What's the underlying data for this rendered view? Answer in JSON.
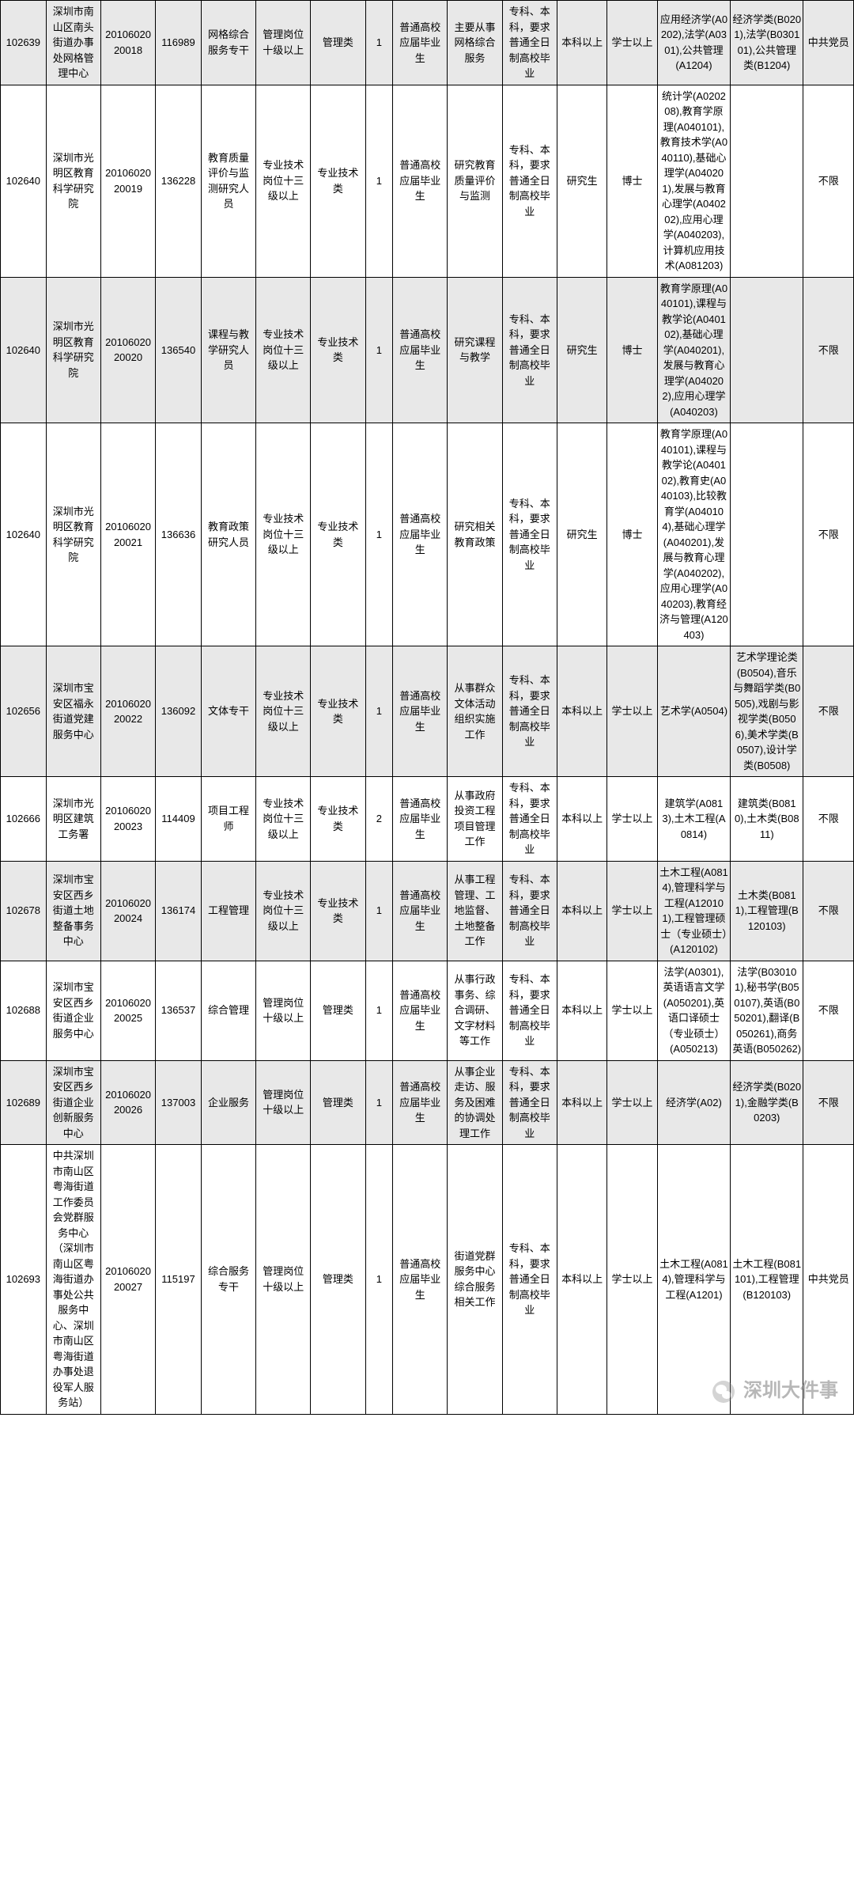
{
  "watermark": "深圳大件事",
  "columns_count": 16,
  "rows": [
    {
      "shaded": true,
      "cells": [
        "102639",
        "深圳市南山区南头街道办事处网格管理中心",
        "20106020 20018",
        "116989",
        "网格综合服务专干",
        "管理岗位十级以上",
        "管理类",
        "1",
        "普通高校应届毕业生",
        "主要从事网格综合服务",
        "专科、本科，要求普通全日制高校毕业",
        "本科以上",
        "学士以上",
        "应用经济学(A0202),法学(A0301),公共管理(A1204)",
        "经济学类(B0201),法学(B030101),公共管理类(B1204)",
        "中共党员"
      ]
    },
    {
      "shaded": false,
      "cells": [
        "102640",
        "深圳市光明区教育科学研究院",
        "20106020 20019",
        "136228",
        "教育质量评价与监测研究人员",
        "专业技术岗位十三级以上",
        "专业技术类",
        "1",
        "普通高校应届毕业生",
        "研究教育质量评价与监测",
        "专科、本科，要求普通全日制高校毕业",
        "研究生",
        "博士",
        "统计学(A020208),教育学原理(A040101),教育技术学(A040110),基础心理学(A040201),发展与教育心理学(A040202),应用心理学(A040203),计算机应用技术(A081203)",
        "",
        "不限"
      ]
    },
    {
      "shaded": true,
      "cells": [
        "102640",
        "深圳市光明区教育科学研究院",
        "20106020 20020",
        "136540",
        "课程与教学研究人员",
        "专业技术岗位十三级以上",
        "专业技术类",
        "1",
        "普通高校应届毕业生",
        "研究课程与教学",
        "专科、本科，要求普通全日制高校毕业",
        "研究生",
        "博士",
        "教育学原理(A040101),课程与教学论(A040102),基础心理学(A040201),发展与教育心理学(A040202),应用心理学(A040203)",
        "",
        "不限"
      ]
    },
    {
      "shaded": false,
      "cells": [
        "102640",
        "深圳市光明区教育科学研究院",
        "20106020 20021",
        "136636",
        "教育政策研究人员",
        "专业技术岗位十三级以上",
        "专业技术类",
        "1",
        "普通高校应届毕业生",
        "研究相关教育政策",
        "专科、本科，要求普通全日制高校毕业",
        "研究生",
        "博士",
        "教育学原理(A040101),课程与教学论(A040102),教育史(A040103),比较教育学(A040104),基础心理学(A040201),发展与教育心理学(A040202),应用心理学(A040203),教育经济与管理(A120403)",
        "",
        "不限"
      ]
    },
    {
      "shaded": true,
      "cells": [
        "102656",
        "深圳市宝安区福永街道党建服务中心",
        "20106020 20022",
        "136092",
        "文体专干",
        "专业技术岗位十三级以上",
        "专业技术类",
        "1",
        "普通高校应届毕业生",
        "从事群众文体活动组织实施工作",
        "专科、本科，要求普通全日制高校毕业",
        "本科以上",
        "学士以上",
        "艺术学(A0504)",
        "艺术学理论类(B0504),音乐与舞蹈学类(B0505),戏剧与影视学类(B0506),美术学类(B0507),设计学类(B0508)",
        "不限"
      ]
    },
    {
      "shaded": false,
      "cells": [
        "102666",
        "深圳市光明区建筑工务署",
        "20106020 20023",
        "114409",
        "项目工程师",
        "专业技术岗位十三级以上",
        "专业技术类",
        "2",
        "普通高校应届毕业生",
        "从事政府投资工程项目管理工作",
        "专科、本科，要求普通全日制高校毕业",
        "本科以上",
        "学士以上",
        "建筑学(A0813),土木工程(A0814)",
        "建筑类(B0810),土木类(B0811)",
        "不限"
      ]
    },
    {
      "shaded": true,
      "cells": [
        "102678",
        "深圳市宝安区西乡街道土地整备事务中心",
        "20106020 20024",
        "136174",
        "工程管理",
        "专业技术岗位十三级以上",
        "专业技术类",
        "1",
        "普通高校应届毕业生",
        "从事工程管理、工地监督、土地整备工作",
        "专科、本科，要求普通全日制高校毕业",
        "本科以上",
        "学士以上",
        "土木工程(A0814),管理科学与工程(A120101),工程管理硕士（专业硕士）(A120102)",
        "土木类(B0811),工程管理(B120103)",
        "不限"
      ]
    },
    {
      "shaded": false,
      "cells": [
        "102688",
        "深圳市宝安区西乡街道企业服务中心",
        "20106020 20025",
        "136537",
        "综合管理",
        "管理岗位十级以上",
        "管理类",
        "1",
        "普通高校应届毕业生",
        "从事行政事务、综合调研、文字材料等工作",
        "专科、本科，要求普通全日制高校毕业",
        "本科以上",
        "学士以上",
        "法学(A0301),英语语言文学(A050201),英语口译硕士（专业硕士）(A050213)",
        "法学(B030101),秘书学(B050107),英语(B050201),翻译(B050261),商务英语(B050262)",
        "不限"
      ]
    },
    {
      "shaded": true,
      "cells": [
        "102689",
        "深圳市宝安区西乡街道企业创新服务中心",
        "20106020 20026",
        "137003",
        "企业服务",
        "管理岗位十级以上",
        "管理类",
        "1",
        "普通高校应届毕业生",
        "从事企业走访、服务及困难的协调处理工作",
        "专科、本科，要求普通全日制高校毕业",
        "本科以上",
        "学士以上",
        "经济学(A02)",
        "经济学类(B0201),金融学类(B0203)",
        "不限"
      ]
    },
    {
      "shaded": false,
      "cells": [
        "102693",
        "中共深圳市南山区粤海街道工作委员会党群服务中心（深圳市南山区粤海街道办事处公共服务中心、深圳市南山区粤海街道办事处退役军人服务站）",
        "20106020 20027",
        "115197",
        "综合服务专干",
        "管理岗位十级以上",
        "管理类",
        "1",
        "普通高校应届毕业生",
        "街道党群服务中心综合服务相关工作",
        "专科、本科，要求普通全日制高校毕业",
        "本科以上",
        "学士以上",
        "土木工程(A0814),管理科学与工程(A1201)",
        "土木工程(B081101),工程管理(B120103)",
        "中共党员"
      ]
    }
  ]
}
